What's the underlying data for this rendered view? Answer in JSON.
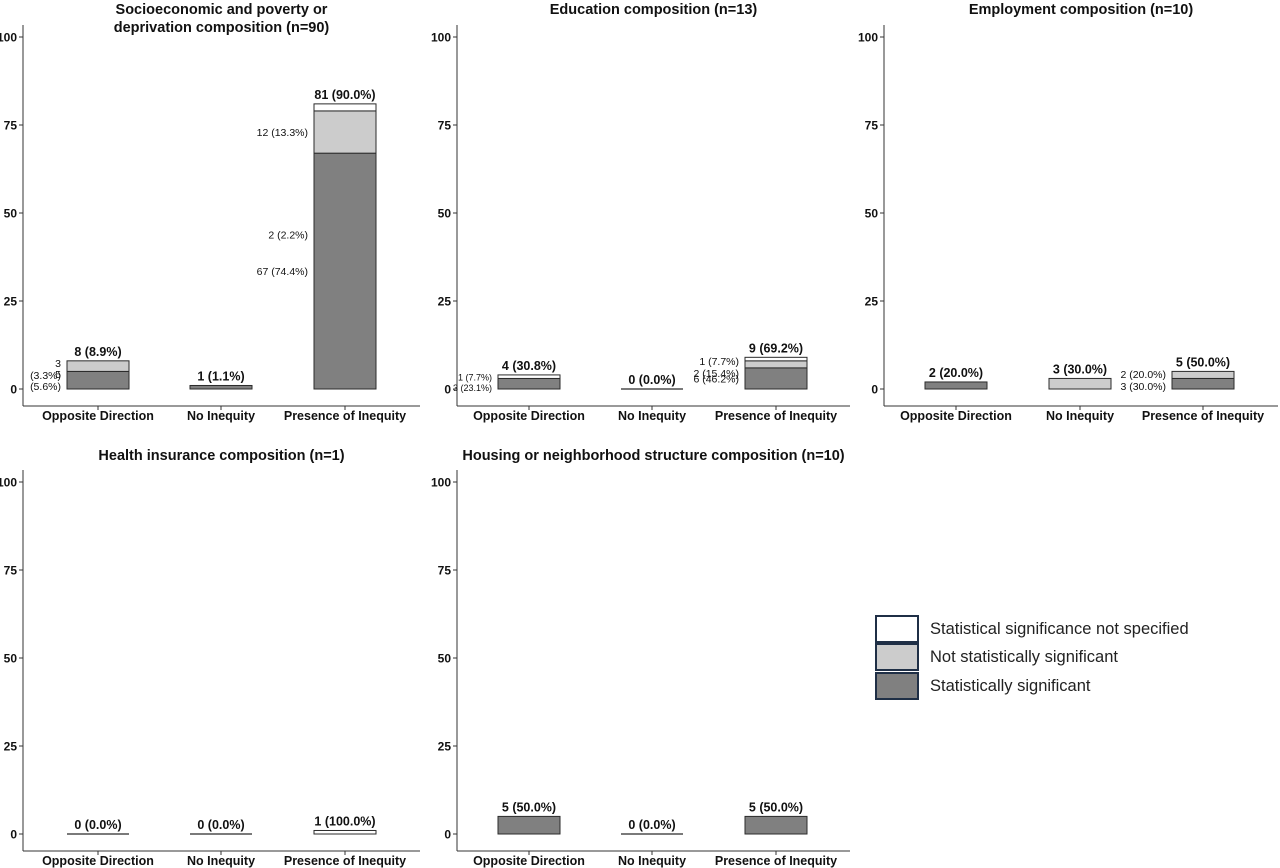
{
  "colors": {
    "not_specified": "#ffffff",
    "not_significant": "#cccccc",
    "significant": "#808080",
    "bar_stroke": "#2b2b2b",
    "legend_stroke": "#1f2f46"
  },
  "legend": {
    "items": [
      {
        "key": "not_specified",
        "label": "Statistical significance not specified",
        "color": "#ffffff"
      },
      {
        "key": "not_significant",
        "label": "Not statistically significant",
        "color": "#cccccc"
      },
      {
        "key": "significant",
        "label": "Statistically significant",
        "color": "#808080"
      }
    ]
  },
  "chart_data": [
    {
      "type": "bar",
      "stacked": true,
      "title": [
        "Socioeconomic and poverty or",
        "deprivation composition (n=90)"
      ],
      "categories": [
        "Opposite Direction",
        "No Inequity",
        "Presence of Inequity"
      ],
      "ylim": [
        0,
        100
      ],
      "yticks": [
        0,
        25,
        50,
        75,
        100
      ],
      "grid": false,
      "series": [
        {
          "key": "significant",
          "values": [
            5,
            1,
            67
          ]
        },
        {
          "key": "not_significant",
          "values": [
            3,
            0,
            12
          ]
        },
        {
          "key": "not_specified",
          "values": [
            0,
            0,
            2
          ]
        }
      ],
      "totals": [
        "8 (8.9%)",
        "1 (1.1%)",
        "81 (90.0%)"
      ],
      "segment_labels": [
        [
          {
            "key": "significant",
            "lines": [
              "5",
              "(5.6%)"
            ]
          },
          {
            "key": "not_significant",
            "lines": [
              "3",
              "(3.3%)"
            ]
          }
        ],
        [],
        [
          {
            "key": "significant",
            "lines": [
              "67 (74.4%)"
            ]
          },
          {
            "key": "not_significant",
            "lines": [
              "12 (13.3%)"
            ]
          },
          {
            "key": "not_specified",
            "lines": [
              "2 (2.2%)"
            ]
          }
        ]
      ]
    },
    {
      "type": "bar",
      "stacked": true,
      "title": [
        "Education composition (n=13)"
      ],
      "categories": [
        "Opposite Direction",
        "No Inequity",
        "Presence of Inequity"
      ],
      "ylim": [
        0,
        100
      ],
      "yticks": [
        0,
        25,
        50,
        75,
        100
      ],
      "grid": false,
      "series": [
        {
          "key": "significant",
          "values": [
            3,
            0,
            6
          ]
        },
        {
          "key": "not_significant",
          "values": [
            0,
            0,
            2
          ]
        },
        {
          "key": "not_specified",
          "values": [
            1,
            0,
            1
          ]
        }
      ],
      "totals": [
        "4 (30.8%)",
        "0 (0.0%)",
        "9 (69.2%)"
      ],
      "segment_labels": [
        [
          {
            "key": "significant",
            "lines": [
              "3 (23.1%)"
            ]
          },
          {
            "key": "not_specified",
            "lines": [
              "1 (7.7%)"
            ]
          }
        ],
        [],
        [
          {
            "key": "significant",
            "lines": [
              "6 (46.2%)"
            ]
          },
          {
            "key": "not_significant",
            "lines": [
              "2 (15.4%)"
            ]
          },
          {
            "key": "not_specified",
            "lines": [
              "1 (7.7%)"
            ]
          }
        ]
      ]
    },
    {
      "type": "bar",
      "stacked": true,
      "title": [
        "Employment composition (n=10)"
      ],
      "categories": [
        "Opposite Direction",
        "No Inequity",
        "Presence of Inequity"
      ],
      "ylim": [
        0,
        100
      ],
      "yticks": [
        0,
        25,
        50,
        75,
        100
      ],
      "grid": false,
      "series": [
        {
          "key": "significant",
          "values": [
            2,
            0,
            3
          ]
        },
        {
          "key": "not_significant",
          "values": [
            0,
            3,
            2
          ]
        },
        {
          "key": "not_specified",
          "values": [
            0,
            0,
            0
          ]
        }
      ],
      "totals": [
        "2 (20.0%)",
        "3 (30.0%)",
        "5 (50.0%)"
      ],
      "segment_labels": [
        [],
        [],
        [
          {
            "key": "significant",
            "lines": [
              "3 (30.0%)"
            ]
          },
          {
            "key": "not_significant",
            "lines": [
              "2 (20.0%)"
            ]
          }
        ]
      ]
    },
    {
      "type": "bar",
      "stacked": true,
      "title": [
        "Health insurance composition (n=1)"
      ],
      "categories": [
        "Opposite Direction",
        "No Inequity",
        "Presence of Inequity"
      ],
      "ylim": [
        0,
        100
      ],
      "yticks": [
        0,
        25,
        50,
        75,
        100
      ],
      "grid": false,
      "series": [
        {
          "key": "significant",
          "values": [
            0,
            0,
            0
          ]
        },
        {
          "key": "not_significant",
          "values": [
            0,
            0,
            0
          ]
        },
        {
          "key": "not_specified",
          "values": [
            0,
            0,
            1
          ]
        }
      ],
      "totals": [
        "0 (0.0%)",
        "0 (0.0%)",
        "1 (100.0%)"
      ],
      "segment_labels": [
        [],
        [],
        []
      ]
    },
    {
      "type": "bar",
      "stacked": true,
      "title": [
        "Housing or neighborhood structure composition (n=10)"
      ],
      "categories": [
        "Opposite Direction",
        "No Inequity",
        "Presence of Inequity"
      ],
      "ylim": [
        0,
        100
      ],
      "yticks": [
        0,
        25,
        50,
        75,
        100
      ],
      "grid": false,
      "series": [
        {
          "key": "significant",
          "values": [
            5,
            0,
            5
          ]
        },
        {
          "key": "not_significant",
          "values": [
            0,
            0,
            0
          ]
        },
        {
          "key": "not_specified",
          "values": [
            0,
            0,
            0
          ]
        }
      ],
      "totals": [
        "5 (50.0%)",
        "0 (0.0%)",
        "5 (50.0%)"
      ],
      "segment_labels": [
        [],
        [],
        []
      ]
    }
  ]
}
